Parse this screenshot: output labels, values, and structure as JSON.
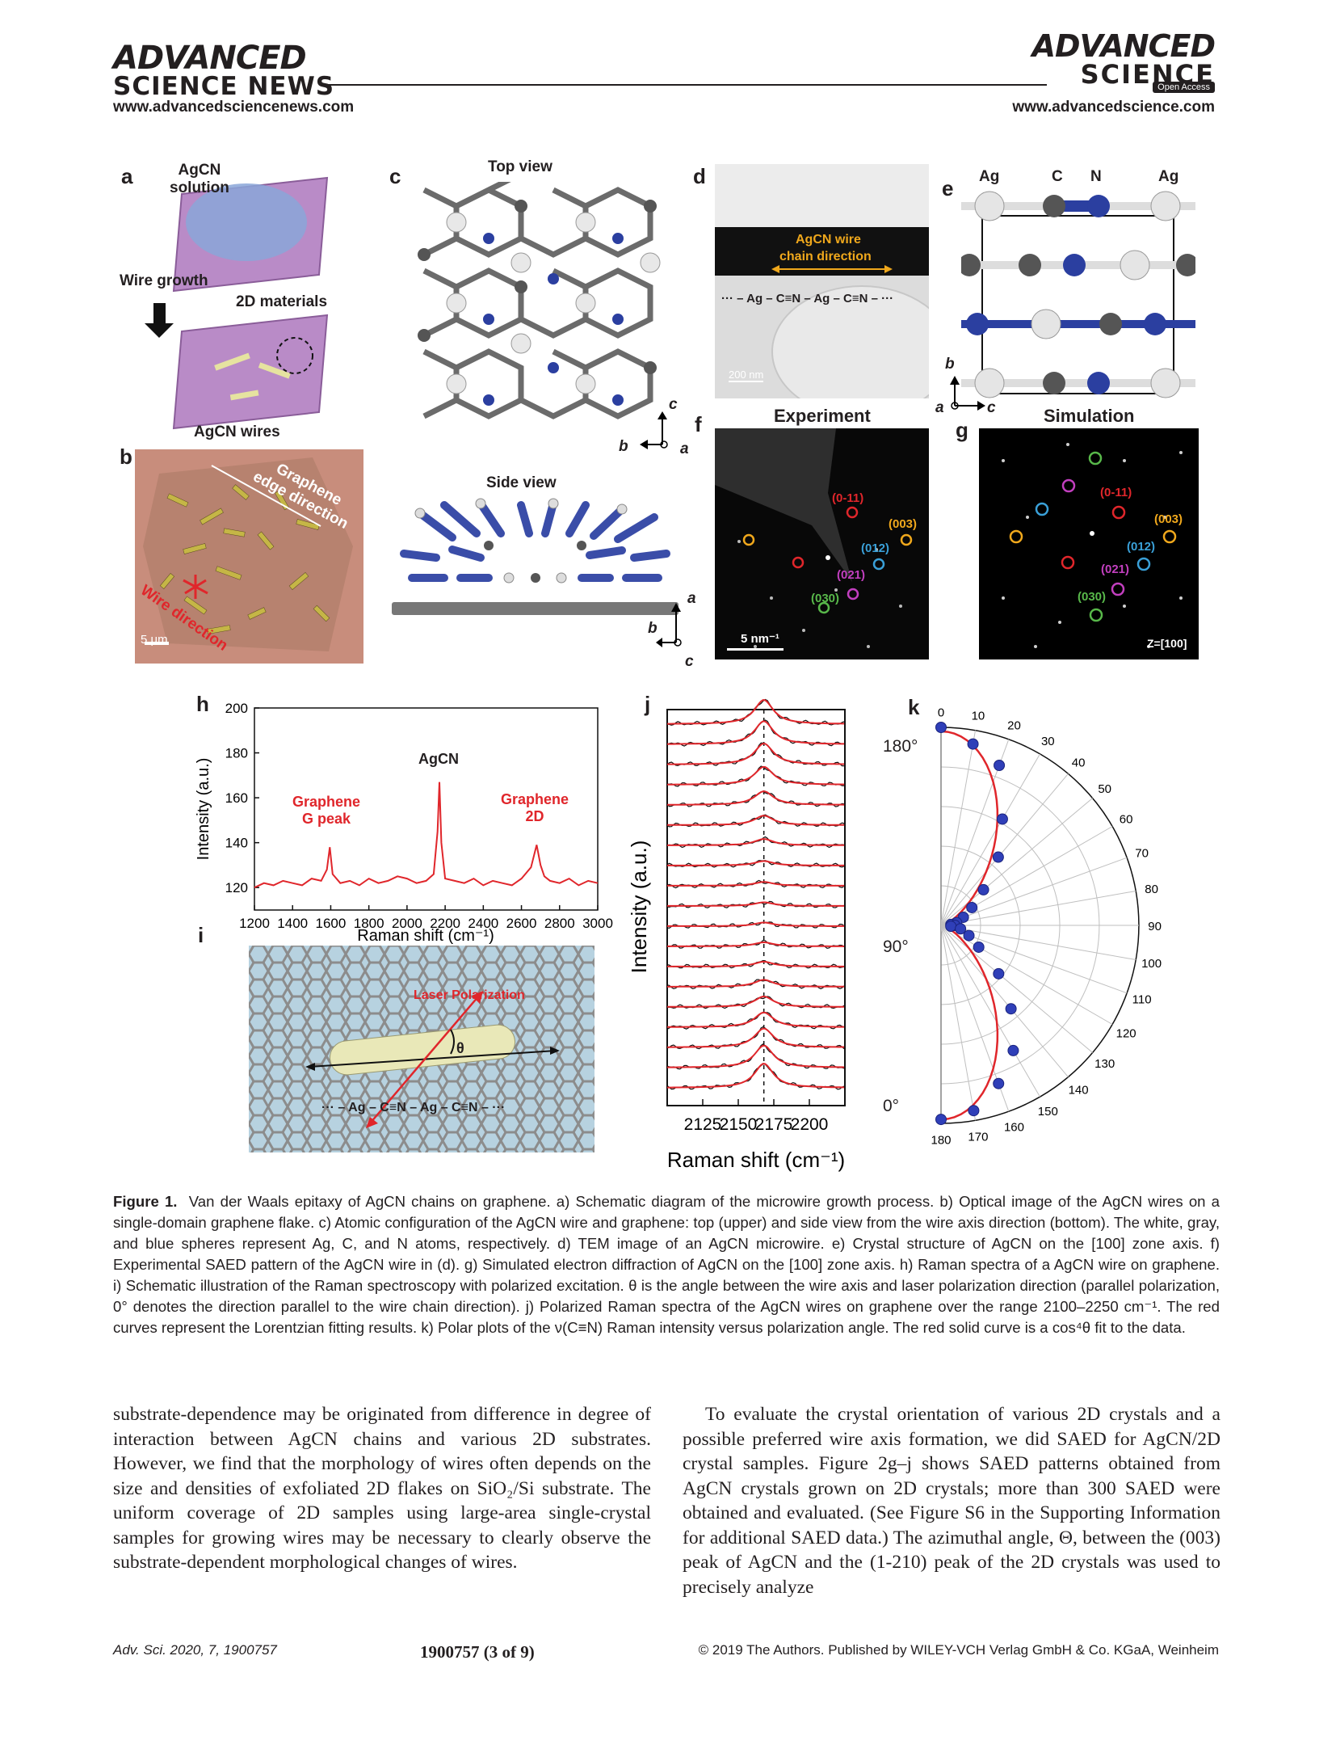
{
  "header": {
    "left_logo_line1": "ADVANCED",
    "left_logo_line2": "SCIENCE NEWS",
    "left_url": "www.advancedsciencenews.com",
    "right_logo_line1": "ADVANCED",
    "right_logo_line2": "SCIENCE",
    "open_access": "Open Access",
    "right_url": "www.advancedscience.com"
  },
  "panels": {
    "a": {
      "label": "a",
      "solution": "AgCN\nsolution",
      "wire_growth": "Wire growth",
      "materials": "2D materials",
      "wires": "AgCN wires"
    },
    "b": {
      "label": "b",
      "edge": "Graphene\nedge direction",
      "wire_dir": "Wire direction",
      "scale": "5 μm"
    },
    "c": {
      "label": "c",
      "top": "Top view",
      "side": "Side view",
      "ax_b": "b",
      "ax_a": "a",
      "ax_c": "c"
    },
    "d": {
      "label": "d",
      "wire": "AgCN wire",
      "chain": "chain direction",
      "formula": "··· – Ag – C≡N – Ag – C≡N – ···",
      "scale": "200 nm"
    },
    "e": {
      "label": "e",
      "ag1": "Ag",
      "c": "C",
      "n": "N",
      "ag2": "Ag",
      "ax_b": "b",
      "ax_a": "a",
      "ax_c": "c"
    },
    "f": {
      "label": "f",
      "title": "Experiment",
      "scale": "5 nm⁻¹"
    },
    "g": {
      "label": "g",
      "title": "Simulation",
      "zone": "Z=[100]"
    },
    "h": {
      "label": "h",
      "ann_gpeak": "Graphene\nG peak",
      "ann_agcn": "AgCN",
      "ann_2d": "Graphene\n2D"
    },
    "i": {
      "label": "i",
      "laser": "Laser Polarization",
      "theta": "θ",
      "formula": "··· – Ag – C≡N – Ag – C≡N – ···"
    },
    "j": {
      "label": "j",
      "angle_top": "180°",
      "angle_mid": "90°",
      "angle_bot": "0°"
    },
    "k": {
      "label": "k"
    }
  },
  "diffraction_spots": {
    "f": [
      {
        "t": "(0-11)",
        "color": "#e0262b"
      },
      {
        "t": "(003)",
        "color": "#f0a81c"
      },
      {
        "t": "(012)",
        "color": "#3aa0d8"
      },
      {
        "t": "(021)",
        "color": "#c23fbf"
      },
      {
        "t": "(030)",
        "color": "#58b84a"
      }
    ],
    "g": [
      {
        "t": "(0-11)",
        "color": "#e0262b"
      },
      {
        "t": "(003)",
        "color": "#f0a81c"
      },
      {
        "t": "(012)",
        "color": "#3aa0d8"
      },
      {
        "t": "(021)",
        "color": "#c23fbf"
      },
      {
        "t": "(030)",
        "color": "#58b84a"
      }
    ]
  },
  "chart_data": [
    {
      "panel": "h",
      "type": "line",
      "xlabel": "Raman shift (cm⁻¹)",
      "ylabel": "Intensity (a.u.)",
      "xlim": [
        1200,
        3000
      ],
      "ylim": [
        110,
        200
      ],
      "xticks": [
        1200,
        1400,
        1600,
        1800,
        2000,
        2200,
        2400,
        2600,
        2800,
        3000
      ],
      "yticks": [
        120,
        140,
        160,
        180,
        200
      ],
      "color": "#e0262b",
      "x": [
        1200,
        1250,
        1300,
        1350,
        1400,
        1450,
        1500,
        1550,
        1580,
        1595,
        1610,
        1650,
        1700,
        1750,
        1800,
        1850,
        1900,
        1950,
        2000,
        2050,
        2100,
        2140,
        2160,
        2170,
        2180,
        2200,
        2250,
        2300,
        2350,
        2400,
        2450,
        2500,
        2550,
        2600,
        2650,
        2680,
        2700,
        2720,
        2750,
        2800,
        2850,
        2900,
        2950,
        3000
      ],
      "y": [
        120,
        122,
        121,
        123,
        122,
        121,
        124,
        123,
        128,
        138,
        126,
        122,
        123,
        121,
        124,
        122,
        123,
        125,
        124,
        122,
        123,
        126,
        145,
        167,
        140,
        124,
        123,
        122,
        124,
        121,
        123,
        122,
        121,
        124,
        129,
        139,
        130,
        125,
        123,
        122,
        124,
        121,
        123,
        122
      ]
    },
    {
      "panel": "j",
      "type": "line",
      "xlabel": "Raman shift (cm⁻¹)",
      "ylabel": "Intensity (a.u.)",
      "xlim": [
        2100,
        2225
      ],
      "xticks": [
        2125,
        2150,
        2175,
        2200
      ],
      "peak_center": 2168,
      "series_count": 19,
      "angles_deg": [
        0,
        10,
        20,
        30,
        40,
        50,
        60,
        70,
        80,
        90,
        100,
        110,
        120,
        130,
        140,
        150,
        160,
        170,
        180
      ],
      "peak_heights": [
        1.0,
        0.9,
        0.75,
        0.55,
        0.35,
        0.18,
        0.08,
        0.04,
        0.02,
        0.02,
        0.03,
        0.06,
        0.15,
        0.3,
        0.5,
        0.7,
        0.85,
        0.95,
        1.0
      ]
    },
    {
      "panel": "k",
      "type": "scatter",
      "polar": true,
      "angle_ticks": [
        0,
        10,
        20,
        30,
        40,
        50,
        60,
        70,
        80,
        90,
        100,
        110,
        120,
        130,
        140,
        150,
        160,
        170,
        180
      ],
      "points_theta_deg": [
        0,
        10,
        20,
        30,
        40,
        50,
        60,
        70,
        80,
        85,
        90,
        95,
        100,
        110,
        120,
        130,
        140,
        150,
        160,
        170,
        180
      ],
      "points_r": [
        1.0,
        0.93,
        0.86,
        0.62,
        0.45,
        0.28,
        0.18,
        0.12,
        0.08,
        0.05,
        0.07,
        0.05,
        0.1,
        0.15,
        0.22,
        0.38,
        0.55,
        0.73,
        0.85,
        0.95,
        0.98
      ],
      "fit": "cos⁴θ"
    }
  ],
  "caption": {
    "label": "Figure 1.",
    "text": "Van der Waals epitaxy of AgCN chains on graphene. a) Schematic diagram of the microwire growth process. b) Optical image of the AgCN wires on a single-domain graphene flake. c) Atomic configuration of the AgCN wire and graphene: top (upper) and side view from the wire axis direction (bottom). The white, gray, and blue spheres represent Ag, C, and N atoms, respectively. d) TEM image of an AgCN microwire. e) Crystal structure of AgCN on the [100] zone axis. f) Experimental SAED pattern of the AgCN wire in (d). g) Simulated electron diffraction of AgCN on the [100] zone axis. h) Raman spectra of a AgCN wire on graphene. i) Schematic illustration of the Raman spectroscopy with polarized excitation. θ is the angle between the wire axis and laser polarization direction (parallel polarization, 0° denotes the direction parallel to the wire chain direction). j) Polarized Raman spectra of the AgCN wires on graphene over the range 2100–2250 cm⁻¹. The red curves represent the Lorentzian fitting results. k) Polar plots of the ν(C≡N) Raman intensity versus polarization angle. The red solid curve is a cos⁴θ fit to the data."
  },
  "body": {
    "left": "substrate-dependence may be originated from difference in degree of interaction between AgCN chains and various 2D substrates. However, we find that the morphology of wires often depends on the size and densities of exfoliated 2D flakes on SiO₂/Si substrate. The uniform coverage of 2D samples using large-area single-crystal samples for growing wires may be necessary to clearly observe the substrate-dependent morphological changes of wires.",
    "right": "To evaluate the crystal orientation of various 2D crystals and a possible preferred wire axis formation, we did SAED for AgCN/2D crystal samples. Figure 2g–j shows SAED patterns obtained from AgCN crystals grown on 2D crystals; more than 300 SAED were obtained and evaluated. (See Figure S6 in the Supporting Information for additional SAED data.) The azimuthal angle, Θ, between the (003) peak of AgCN and the (1-210) peak of the 2D crystals was used to precisely analyze"
  },
  "footer": {
    "journal": "Adv. Sci. 2020, 7, 1900757",
    "page": "1900757  (3 of 9)",
    "copyright": "© 2019 The Authors. Published by WILEY-VCH Verlag GmbH & Co. KGaA, Weinheim"
  }
}
